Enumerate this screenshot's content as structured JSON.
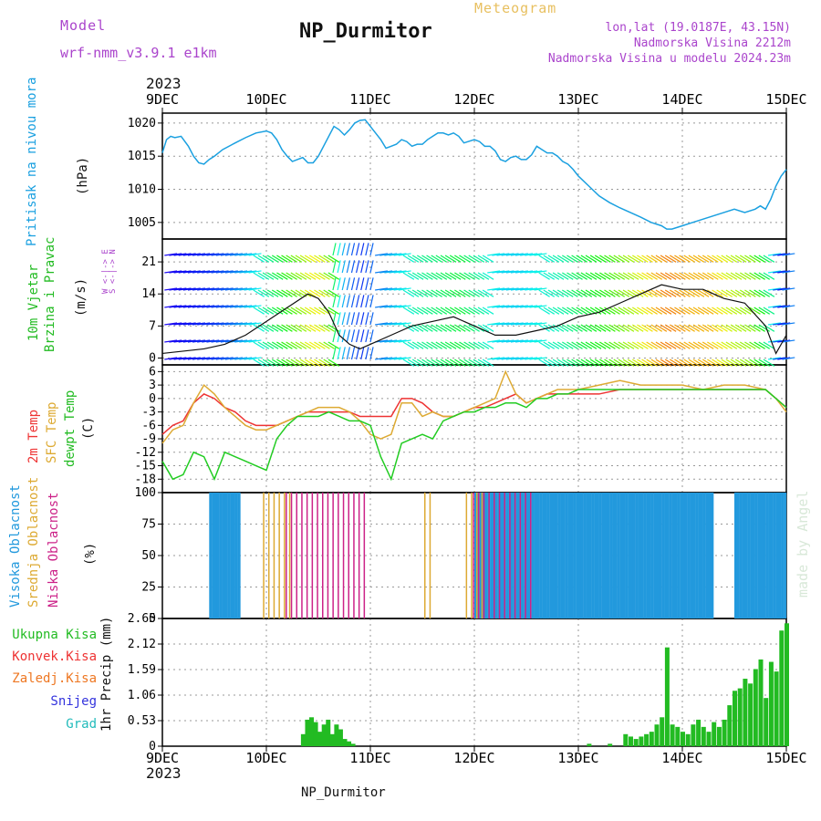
{
  "header": {
    "model_label": "Model",
    "model_name": "wrf-nmm_v3.9.1 e1km",
    "product": "Meteogram",
    "station": "NP_Durmitor",
    "coords": "lon,lat (19.0187E, 43.15N)",
    "elev": "Nadmorska Visina 2212m",
    "elev_model": "Nadmorska Visina u modelu 2024.23m",
    "year_top": "2023",
    "year_bottom": "2023",
    "footer_station": "NP_Durmitor",
    "credit": "made by Angel"
  },
  "panel_labels": {
    "pressure": "Pritisak na nivou mora",
    "pressure_unit": "(hPa)",
    "wind_speed": "10m Vjetar",
    "wind_dir": "Brzina i Pravac",
    "wind_unit": "(m/s)",
    "compass": "W <-|-> E",
    "compass2": "S <-|-> N",
    "t2m": "2m Temp",
    "tsfc": "SFC Temp",
    "tdew": "dewpt Temp",
    "temp_unit": "(C)",
    "cld_high": "Visoka Oblacnost",
    "cld_mid": "Srednja Oblacnost",
    "cld_low": "Niska Oblacnost",
    "cld_unit": "(%)",
    "pr_total": "Ukupna Kisa",
    "pr_conv": "Konvek.Kisa",
    "pr_frz": "Zaledj.Kisa",
    "pr_snow": "Snijeg",
    "pr_grad": "Grad",
    "pr_unit": "1hr Precip (mm)"
  },
  "colors": {
    "pressure": "#1aa0e0",
    "wind_label": "#22bb22",
    "compass": "#aa44cc",
    "t2m": "#ee3333",
    "tsfc": "#ddaa33",
    "tdew": "#22cc22",
    "cld_high": "#2299dd",
    "cld_mid": "#ddaa33",
    "cld_low": "#cc2288",
    "pr_total": "#22bb22",
    "pr_conv": "#ee3333",
    "pr_frz": "#ee7722",
    "pr_snow": "#3333dd",
    "pr_grad": "#22bbbb",
    "title_purple": "#aa44cc",
    "title_gold": "#e8c060"
  },
  "chart_data": [
    {
      "type": "line",
      "name": "pressure",
      "x_ticks": [
        "9DEC",
        "10DEC",
        "11DEC",
        "12DEC",
        "13DEC",
        "14DEC",
        "15DEC"
      ],
      "ylim": [
        1002.5,
        1021.5
      ],
      "y_ticks": [
        "1005",
        "1010",
        "1015",
        "1020"
      ],
      "series": [
        {
          "x": [
            0,
            0.04,
            0.08,
            0.12,
            0.18,
            0.25,
            0.3,
            0.35,
            0.4,
            0.45,
            0.5,
            0.58,
            0.7,
            0.8,
            0.9,
            1.0,
            1.05,
            1.1,
            1.15,
            1.2,
            1.25,
            1.3,
            1.35,
            1.4,
            1.45,
            1.5,
            1.55,
            1.6,
            1.65,
            1.7,
            1.75,
            1.8,
            1.85,
            1.9,
            1.95,
            2.0,
            2.05,
            2.1,
            2.15,
            2.2,
            2.25,
            2.3,
            2.35,
            2.4,
            2.45,
            2.5,
            2.55,
            2.6,
            2.65,
            2.7,
            2.75,
            2.8,
            2.85,
            2.9,
            3.0,
            3.05,
            3.1,
            3.15,
            3.2,
            3.25,
            3.3,
            3.35,
            3.4,
            3.45,
            3.5,
            3.55,
            3.6,
            3.65,
            3.7,
            3.75,
            3.8,
            3.85,
            3.9,
            3.95,
            4.0,
            4.1,
            4.2,
            4.3,
            4.4,
            4.5,
            4.6,
            4.7,
            4.8,
            4.85,
            4.9,
            5.0,
            5.1,
            5.2,
            5.3,
            5.4,
            5.5,
            5.6,
            5.7,
            5.75,
            5.8,
            5.85,
            5.9,
            5.95,
            6.0
          ],
          "y": [
            1015.5,
            1017.5,
            1018.0,
            1017.8,
            1018.0,
            1016.5,
            1015.0,
            1014.0,
            1013.8,
            1014.5,
            1015.0,
            1016.0,
            1017.0,
            1017.8,
            1018.5,
            1018.8,
            1018.5,
            1017.5,
            1016.0,
            1015.0,
            1014.2,
            1014.5,
            1014.8,
            1014.0,
            1014.0,
            1015.0,
            1016.5,
            1018.0,
            1019.5,
            1019.0,
            1018.2,
            1019.0,
            1020.0,
            1020.4,
            1020.5,
            1019.5,
            1018.5,
            1017.5,
            1016.2,
            1016.5,
            1016.8,
            1017.5,
            1017.2,
            1016.5,
            1016.8,
            1016.8,
            1017.5,
            1018.0,
            1018.5,
            1018.5,
            1018.2,
            1018.5,
            1018.0,
            1017.0,
            1017.5,
            1017.2,
            1016.5,
            1016.5,
            1015.8,
            1014.5,
            1014.2,
            1014.8,
            1015.0,
            1014.5,
            1014.5,
            1015.2,
            1016.5,
            1016.0,
            1015.5,
            1015.5,
            1015.0,
            1014.2,
            1013.8,
            1013.0,
            1012.0,
            1010.5,
            1009.0,
            1008.0,
            1007.2,
            1006.5,
            1005.8,
            1005.0,
            1004.5,
            1004.0,
            1004.0,
            1004.5,
            1005.0,
            1005.5,
            1006.0,
            1006.5,
            1007.0,
            1006.5,
            1007.0,
            1007.5,
            1007.0,
            1008.5,
            1010.5,
            1012.0,
            1013.0
          ]
        }
      ]
    },
    {
      "type": "line",
      "name": "wind",
      "ylim": [
        -1.5,
        26
      ],
      "y_ticks": [
        "0",
        "7",
        "14",
        "21"
      ],
      "series": [
        {
          "x": [
            0,
            0.2,
            0.4,
            0.6,
            0.8,
            1.0,
            1.2,
            1.4,
            1.5,
            1.6,
            1.7,
            1.8,
            1.9,
            2.0,
            2.2,
            2.4,
            2.6,
            2.8,
            3.0,
            3.2,
            3.4,
            3.6,
            3.8,
            4.0,
            4.2,
            4.4,
            4.6,
            4.8,
            5.0,
            5.2,
            5.4,
            5.6,
            5.8,
            5.9,
            6.0
          ],
          "y": [
            1,
            1.5,
            2,
            3,
            5,
            8,
            11,
            14,
            13,
            10,
            5,
            3,
            2,
            3,
            5,
            7,
            8,
            9,
            7,
            5,
            5,
            6,
            7,
            9,
            10,
            12,
            14,
            16,
            15,
            15,
            13,
            12,
            7,
            1,
            5
          ]
        }
      ]
    },
    {
      "type": "line",
      "name": "temperature",
      "ylim": [
        -21,
        7.5
      ],
      "y_ticks": [
        "6",
        "3",
        "0",
        "-3",
        "-6",
        "-9",
        "-12",
        "-15",
        "-18"
      ],
      "series": [
        {
          "name": "2m Temp",
          "x": [
            0,
            0.1,
            0.2,
            0.3,
            0.4,
            0.5,
            0.6,
            0.7,
            0.8,
            0.9,
            1.0,
            1.1,
            1.2,
            1.3,
            1.4,
            1.5,
            1.6,
            1.7,
            1.8,
            1.9,
            2.0,
            2.1,
            2.2,
            2.3,
            2.4,
            2.5,
            2.6,
            2.7,
            2.8,
            2.9,
            3.0,
            3.1,
            3.2,
            3.3,
            3.4,
            3.5,
            3.6,
            3.7,
            3.8,
            3.9,
            4.0,
            4.2,
            4.4,
            4.6,
            4.8,
            5.0,
            5.2,
            5.4,
            5.6,
            5.8,
            5.9,
            6.0
          ],
          "y": [
            -8,
            -6,
            -5,
            -1,
            1,
            0,
            -2,
            -3,
            -5,
            -6,
            -6,
            -6,
            -5,
            -4,
            -3,
            -3,
            -3,
            -3,
            -3,
            -4,
            -4,
            -4,
            -4,
            0,
            0,
            -1,
            -3,
            -4,
            -4,
            -3,
            -2,
            -2,
            -1,
            0,
            1,
            -1,
            0,
            1,
            1,
            1,
            1,
            1,
            2,
            2,
            2,
            2,
            2,
            2,
            2,
            2,
            0,
            -2
          ]
        },
        {
          "name": "SFC Temp",
          "x": [
            0,
            0.1,
            0.2,
            0.3,
            0.4,
            0.5,
            0.6,
            0.7,
            0.8,
            0.9,
            1.0,
            1.1,
            1.2,
            1.3,
            1.4,
            1.5,
            1.6,
            1.7,
            1.8,
            1.9,
            2.0,
            2.1,
            2.2,
            2.3,
            2.4,
            2.5,
            2.6,
            2.7,
            2.8,
            2.9,
            3.0,
            3.1,
            3.2,
            3.3,
            3.4,
            3.5,
            3.6,
            3.7,
            3.8,
            3.9,
            4.0,
            4.2,
            4.4,
            4.6,
            4.8,
            5.0,
            5.2,
            5.4,
            5.6,
            5.8,
            5.9,
            6.0
          ],
          "y": [
            -10,
            -7,
            -6,
            -1,
            3,
            1,
            -2,
            -4,
            -6,
            -7,
            -7,
            -6,
            -5,
            -4,
            -3,
            -2,
            -2,
            -2,
            -3,
            -5,
            -8,
            -9,
            -8,
            -1,
            -1,
            -4,
            -3,
            -4,
            -4,
            -3,
            -2,
            -1,
            0,
            6,
            1,
            -1,
            0,
            1,
            2,
            2,
            2,
            3,
            4,
            3,
            3,
            3,
            2,
            3,
            3,
            2,
            0,
            -3
          ]
        },
        {
          "name": "dewpt Temp",
          "x": [
            0,
            0.05,
            0.1,
            0.2,
            0.3,
            0.4,
            0.5,
            0.6,
            0.7,
            0.8,
            0.9,
            1.0,
            1.1,
            1.2,
            1.3,
            1.4,
            1.5,
            1.6,
            1.7,
            1.8,
            1.9,
            2.0,
            2.1,
            2.2,
            2.3,
            2.4,
            2.5,
            2.6,
            2.7,
            2.8,
            2.9,
            3.0,
            3.1,
            3.2,
            3.3,
            3.4,
            3.5,
            3.6,
            3.7,
            3.8,
            3.9,
            4.0,
            4.2,
            4.4,
            4.6,
            4.8,
            5.0,
            5.2,
            5.4,
            5.6,
            5.8,
            5.9,
            6.0
          ],
          "y": [
            -14,
            -16,
            -18,
            -17,
            -12,
            -13,
            -18,
            -12,
            -13,
            -14,
            -15,
            -16,
            -9,
            -6,
            -4,
            -4,
            -4,
            -3,
            -4,
            -5,
            -5,
            -6,
            -13,
            -18,
            -10,
            -9,
            -8,
            -9,
            -5,
            -4,
            -3,
            -3,
            -2,
            -2,
            -1,
            -1,
            -2,
            0,
            0,
            1,
            1,
            2,
            2,
            2,
            2,
            2,
            2,
            2,
            2,
            2,
            2,
            0,
            -2
          ]
        }
      ]
    },
    {
      "type": "bar",
      "name": "cloudiness",
      "ylim": [
        0,
        100
      ],
      "y_ticks": [
        "0",
        "25",
        "50",
        "75",
        "100"
      ],
      "series": [
        {
          "name": "Visoka Oblacnost",
          "ranges": [
            [
              0.45,
              0.75
            ],
            [
              3.0,
              5.3
            ],
            [
              5.5,
              6.0
            ]
          ],
          "value": 100
        },
        {
          "name": "Srednja Oblacnost",
          "ranges": [
            [
              0.95,
              1.25
            ],
            [
              2.5,
              2.55
            ],
            [
              2.9,
              3.05
            ]
          ],
          "value": 100
        },
        {
          "name": "Niska Oblacnost",
          "ranges": [
            [
              1.15,
              1.95
            ],
            [
              2.95,
              3.5
            ]
          ],
          "value": 100
        }
      ]
    },
    {
      "type": "bar",
      "name": "precip",
      "ylim": [
        0,
        2.65
      ],
      "y_ticks": [
        "0",
        "0.53",
        "1.06",
        "1.59",
        "2.12",
        "2.65"
      ],
      "series": [
        {
          "name": "Ukupna Kisa",
          "x": [
            1.35,
            1.39,
            1.43,
            1.47,
            1.51,
            1.55,
            1.59,
            1.63,
            1.67,
            1.71,
            1.75,
            1.79,
            1.83,
            4.1,
            4.3,
            4.45,
            4.5,
            4.55,
            4.6,
            4.65,
            4.7,
            4.75,
            4.8,
            4.85,
            4.9,
            4.95,
            5.0,
            5.05,
            5.1,
            5.15,
            5.2,
            5.25,
            5.3,
            5.35,
            5.4,
            5.45,
            5.5,
            5.55,
            5.6,
            5.65,
            5.7,
            5.75,
            5.8,
            5.85,
            5.9,
            5.95,
            6.0
          ],
          "values": [
            0.25,
            0.55,
            0.6,
            0.5,
            0.3,
            0.45,
            0.55,
            0.25,
            0.45,
            0.35,
            0.15,
            0.1,
            0.05,
            0.05,
            0.05,
            0.25,
            0.2,
            0.15,
            0.2,
            0.25,
            0.3,
            0.45,
            0.6,
            2.05,
            0.45,
            0.4,
            0.3,
            0.25,
            0.45,
            0.55,
            0.4,
            0.3,
            0.5,
            0.4,
            0.55,
            0.85,
            1.15,
            1.2,
            1.4,
            1.3,
            1.6,
            1.8,
            1.0,
            1.75,
            1.55,
            2.4,
            2.55
          ]
        }
      ]
    }
  ]
}
